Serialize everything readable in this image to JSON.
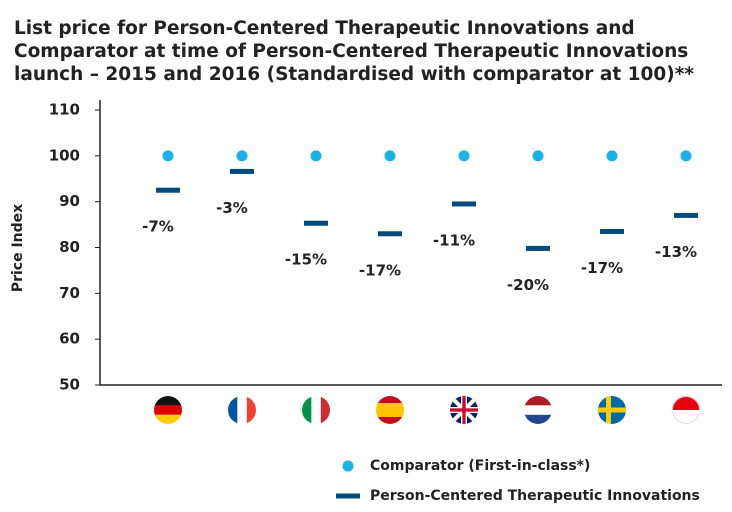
{
  "chart_data": {
    "type": "dot",
    "title": [
      "List price for Person-Centered Therapeutic Innovations and",
      "Comparator at time of Person-Centered Therapeutic Innovations",
      "launch – 2015 and 2016 (Standardised with comparator at 100)**"
    ],
    "ylabel": "Price Index",
    "categories": [
      null,
      null,
      null,
      null,
      null,
      null,
      null,
      null
    ],
    "series": [
      {
        "name": "Comparator (First-in-class*)",
        "color": "#1ab0e8",
        "marker": "dot",
        "values": [
          100,
          100,
          100,
          100,
          100,
          100,
          100,
          100
        ]
      },
      {
        "name": "Person-Centered Therapeutic Innovations",
        "color": "#004a7c",
        "marker": "dash",
        "values": [
          92.5,
          96.6,
          85.3,
          83,
          89.5,
          79.8,
          83.5,
          87
        ]
      }
    ],
    "annotations": [
      "-7%",
      "-3%",
      "-15%",
      "-17%",
      "-11%",
      "-20%",
      "-17%",
      "-13%"
    ],
    "ylim": [
      50,
      110
    ],
    "yticks": [
      50,
      60,
      70,
      80,
      90,
      100,
      110
    ]
  }
}
